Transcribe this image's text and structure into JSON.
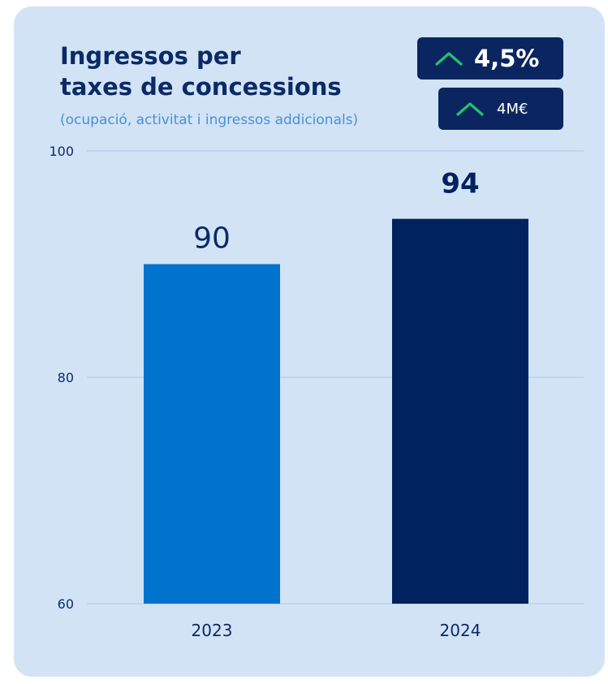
{
  "header": {
    "title_line1": "Ingressos per",
    "title_line2": "taxes de concessions",
    "subtitle": "(ocupació, activitat i ingressos addicionals)"
  },
  "badges": {
    "percent_change": "4,5%",
    "absolute_change": "4M€",
    "arrow_icon": "chevron-up-icon",
    "arrow_color": "#22c46e",
    "background": "#0b2560"
  },
  "colors": {
    "card_background": "#d2e3f6",
    "bar_2023": "#0073cf",
    "bar_2024": "#00235f",
    "title": "#0b2a66",
    "subtitle": "#4a8fd6",
    "gridline": "#b6cde9"
  },
  "chart_data": {
    "type": "bar",
    "title": "",
    "xlabel": "",
    "ylabel": "",
    "categories": [
      "2023",
      "2024"
    ],
    "values": [
      90,
      94
    ],
    "data_labels": [
      "90",
      "94"
    ],
    "ylim": [
      60,
      100
    ],
    "yticks": [
      60,
      80,
      100
    ],
    "ytick_labels": [
      "60",
      "80",
      "100"
    ],
    "grid": true,
    "legend": "none"
  }
}
